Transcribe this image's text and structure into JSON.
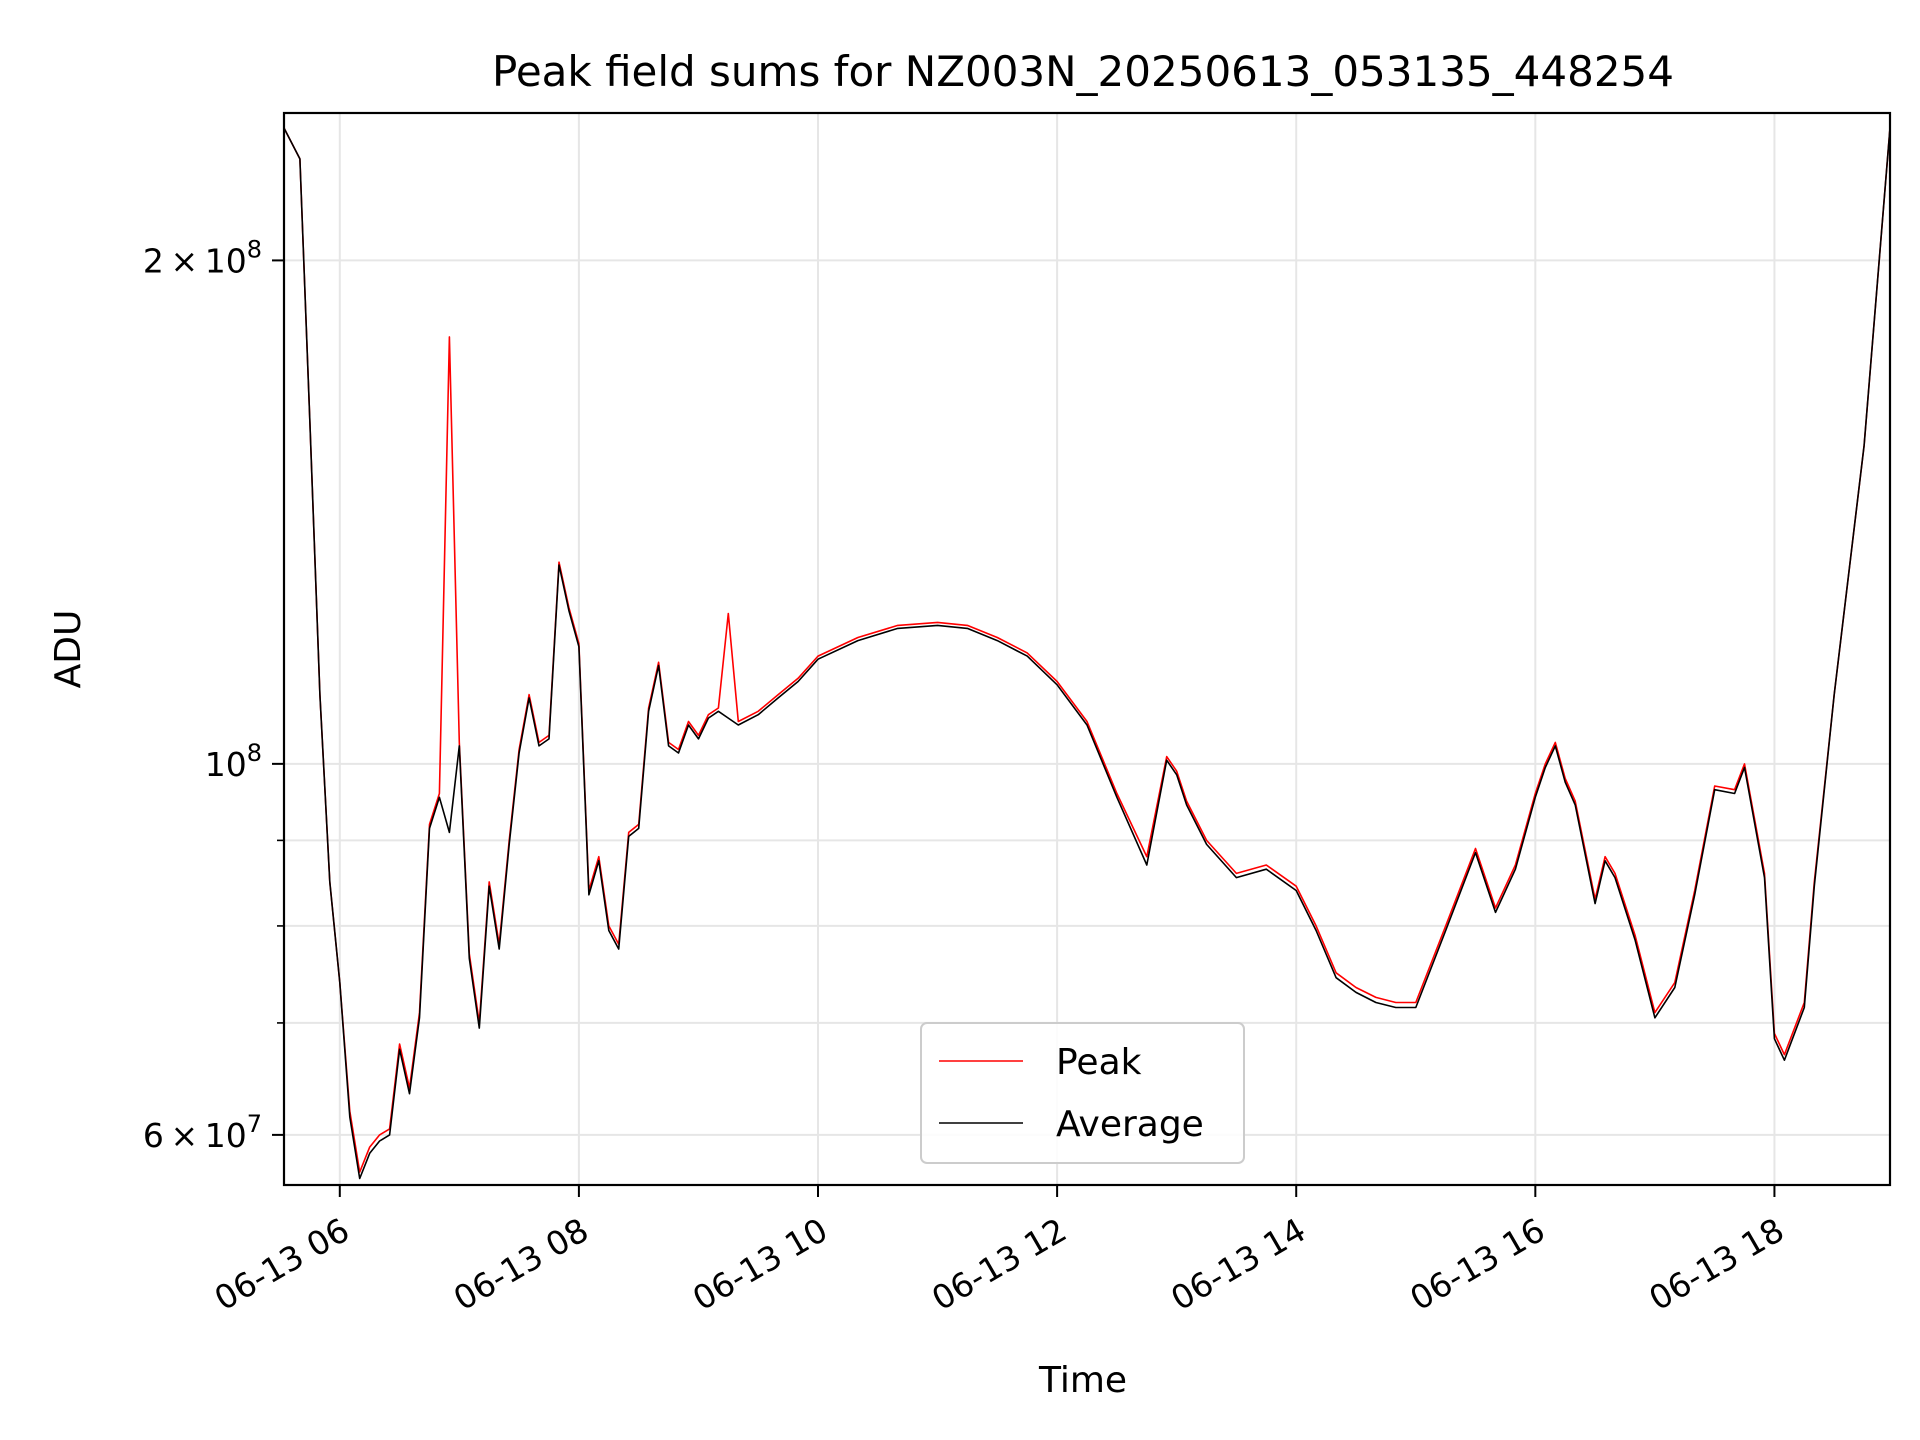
{
  "chart_data": {
    "type": "line",
    "title": "Peak field sums for NZ003N_20250613_053135_448254",
    "xlabel": "Time",
    "ylabel": "ADU",
    "yscale": "log",
    "xlim": [
      "06-13 05:32",
      "06-13 18:58"
    ],
    "ylim": [
      56000000,
      245000000
    ],
    "grid": true,
    "legend_position": "lower-center",
    "x_ticks": [
      "06-13 06",
      "06-13 08",
      "06-13 10",
      "06-13 12",
      "06-13 14",
      "06-13 16",
      "06-13 18"
    ],
    "y_ticks": [
      {
        "value": 60000000,
        "mantissa": "6",
        "base": "10",
        "exp": "7"
      },
      {
        "value": 100000000,
        "mantissa": "",
        "base": "10",
        "exp": "8"
      },
      {
        "value": 200000000,
        "mantissa": "2",
        "base": "10",
        "exp": "8"
      }
    ],
    "x": [
      "05:32",
      "05:40",
      "05:45",
      "05:50",
      "05:55",
      "06:00",
      "06:05",
      "06:10",
      "06:15",
      "06:20",
      "06:25",
      "06:30",
      "06:35",
      "06:40",
      "06:45",
      "06:50",
      "06:55",
      "07:00",
      "07:05",
      "07:10",
      "07:15",
      "07:20",
      "07:25",
      "07:30",
      "07:35",
      "07:40",
      "07:45",
      "07:50",
      "07:55",
      "08:00",
      "08:05",
      "08:10",
      "08:15",
      "08:20",
      "08:25",
      "08:30",
      "08:35",
      "08:40",
      "08:45",
      "08:50",
      "08:55",
      "09:00",
      "09:05",
      "09:10",
      "09:15",
      "09:20",
      "09:30",
      "09:40",
      "09:50",
      "10:00",
      "10:20",
      "10:40",
      "11:00",
      "11:15",
      "11:30",
      "11:45",
      "12:00",
      "12:15",
      "12:30",
      "12:45",
      "12:55",
      "13:00",
      "13:05",
      "13:15",
      "13:30",
      "13:45",
      "14:00",
      "14:10",
      "14:20",
      "14:30",
      "14:40",
      "14:50",
      "15:00",
      "15:15",
      "15:30",
      "15:40",
      "15:50",
      "16:00",
      "16:05",
      "16:10",
      "16:15",
      "16:20",
      "16:30",
      "16:35",
      "16:40",
      "16:50",
      "17:00",
      "17:10",
      "17:20",
      "17:30",
      "17:40",
      "17:45",
      "17:55",
      "18:00",
      "18:05",
      "18:15",
      "18:20",
      "18:30",
      "18:45",
      "18:58"
    ],
    "series": [
      {
        "name": "Peak",
        "color": "#ff0000",
        "values": [
          240000000,
          230000000,
          160000000,
          110000000,
          85000000,
          74000000,
          62000000,
          57000000,
          59000000,
          60000000,
          60500000,
          68000000,
          64000000,
          71000000,
          92000000,
          96000000,
          180000000,
          103000000,
          77000000,
          70000000,
          85000000,
          78000000,
          90000000,
          102000000,
          110000000,
          103000000,
          104000000,
          132000000,
          124000000,
          118000000,
          84000000,
          88000000,
          80000000,
          78000000,
          91000000,
          92000000,
          108000000,
          115000000,
          103000000,
          102000000,
          106000000,
          104000000,
          107000000,
          108000000,
          123000000,
          106000000,
          107500000,
          110000000,
          112500000,
          116000000,
          119000000,
          121000000,
          121500000,
          121000000,
          119000000,
          116500000,
          112000000,
          106000000,
          96000000,
          88000000,
          101000000,
          99000000,
          95000000,
          90000000,
          86000000,
          87000000,
          84500000,
          80000000,
          75000000,
          73500000,
          72500000,
          72000000,
          72000000,
          80000000,
          89000000,
          82000000,
          87000000,
          96000000,
          100000000,
          103000000,
          98000000,
          95000000,
          83000000,
          88000000,
          86000000,
          79000000,
          71000000,
          74000000,
          84000000,
          97000000,
          96500000,
          100000000,
          86000000,
          69000000,
          67000000,
          72000000,
          85000000,
          110000000,
          155000000,
          240000000
        ]
      },
      {
        "name": "Average",
        "color": "#000000",
        "values": [
          240000000,
          230000000,
          160000000,
          110000000,
          85000000,
          74000000,
          61500000,
          56500000,
          58500000,
          59500000,
          60000000,
          67500000,
          63500000,
          70500000,
          91500000,
          95500000,
          91000000,
          102500000,
          76500000,
          69500000,
          84500000,
          77500000,
          89500000,
          101500000,
          109500000,
          102500000,
          103500000,
          131500000,
          123500000,
          117500000,
          83500000,
          87500000,
          79500000,
          77500000,
          90500000,
          91500000,
          107500000,
          114500000,
          102500000,
          101500000,
          105500000,
          103500000,
          106500000,
          107500000,
          106500000,
          105500000,
          107000000,
          109500000,
          112000000,
          115500000,
          118500000,
          120500000,
          121000000,
          120500000,
          118500000,
          116000000,
          111500000,
          105500000,
          95500000,
          87000000,
          100500000,
          98500000,
          94500000,
          89500000,
          85500000,
          86500000,
          84000000,
          79500000,
          74500000,
          73000000,
          72000000,
          71500000,
          71500000,
          79500000,
          88500000,
          81500000,
          86500000,
          95500000,
          99500000,
          102500000,
          97500000,
          94500000,
          82500000,
          87500000,
          85500000,
          78500000,
          70500000,
          73500000,
          83500000,
          96500000,
          96000000,
          99500000,
          85500000,
          68500000,
          66500000,
          71500000,
          84500000,
          110000000,
          155000000,
          240000000
        ]
      }
    ]
  }
}
